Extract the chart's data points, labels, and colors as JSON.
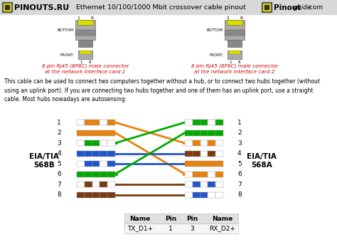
{
  "title": "Ethernet 10/100/1000 Mbit crossover cable pinout",
  "bg_color": "#ffffff",
  "header_bg": "#d8d8d8",
  "description": "This cable can be used to connect two computers together without a hub, or to connect two hubs together (without\nusing an uplink port). If you are connecting two hubs together and one of them has an uplink port, use a straight\ncable. Most hubs nowadays are autosensing.",
  "table_headers": [
    "Name",
    "Pin",
    "Pin",
    "Name"
  ],
  "table_row": [
    "TX_D1+",
    "1",
    "3",
    "RX_D2+"
  ],
  "pin_colors_left": [
    [
      "#ffffff",
      "#e8820c",
      "#e8820c",
      "#ffffff",
      "#e8820c"
    ],
    [
      "#e8820c",
      "#e8820c",
      "#e8820c",
      "#e8820c",
      "#e8820c"
    ],
    [
      "#ffffff",
      "#00aa00",
      "#00aa00",
      "#ffffff",
      "#ffffff"
    ],
    [
      "#2255cc",
      "#2255cc",
      "#2255cc",
      "#2255cc",
      "#2255cc"
    ],
    [
      "#ffffff",
      "#2255cc",
      "#2255cc",
      "#ffffff",
      "#2255cc"
    ],
    [
      "#00aa00",
      "#00aa00",
      "#00aa00",
      "#00aa00",
      "#00aa00"
    ],
    [
      "#ffffff",
      "#7a3b10",
      "#ffffff",
      "#7a3b10",
      "#ffffff"
    ],
    [
      "#7a3b10",
      "#7a3b10",
      "#7a3b10",
      "#7a3b10",
      "#7a3b10"
    ]
  ],
  "pin_colors_right": [
    [
      "#ffffff",
      "#00aa00",
      "#00aa00",
      "#ffffff",
      "#00aa00"
    ],
    [
      "#00aa00",
      "#00aa00",
      "#00aa00",
      "#00aa00",
      "#00aa00"
    ],
    [
      "#ffffff",
      "#e8820c",
      "#ffffff",
      "#e8820c",
      "#ffffff"
    ],
    [
      "#7a3b10",
      "#7a3b10",
      "#ffffff",
      "#7a3b10",
      "#ffffff"
    ],
    [
      "#e8820c",
      "#e8820c",
      "#e8820c",
      "#e8820c",
      "#e8820c"
    ],
    [
      "#ffffff",
      "#e8820c",
      "#e8820c",
      "#ffffff",
      "#e8820c"
    ],
    [
      "#ffffff",
      "#2255cc",
      "#ffffff",
      "#2255cc",
      "#ffffff"
    ],
    [
      "#ffffff",
      "#2255cc",
      "#2255cc",
      "#ffffff",
      "#ffffff"
    ]
  ],
  "wire_colors_left": [
    "#e8820c",
    "#e8820c",
    "#00aa00",
    "#2255cc",
    "#2255cc",
    "#00aa00",
    "#7a3b10",
    "#7a3b10"
  ],
  "cross_mapping": [
    3,
    6,
    1,
    4,
    5,
    2,
    7,
    8
  ],
  "left_label_line1": "EIA/TIA",
  "left_label_line2": "568B",
  "right_label_line1": "EIA/TIA",
  "right_label_line2": "568A",
  "connector1_sub": "at the network interface card 1",
  "connector2_sub": "at the network interface card 2",
  "connector_label": "8 pin RJ45 (8P8C) male connector"
}
